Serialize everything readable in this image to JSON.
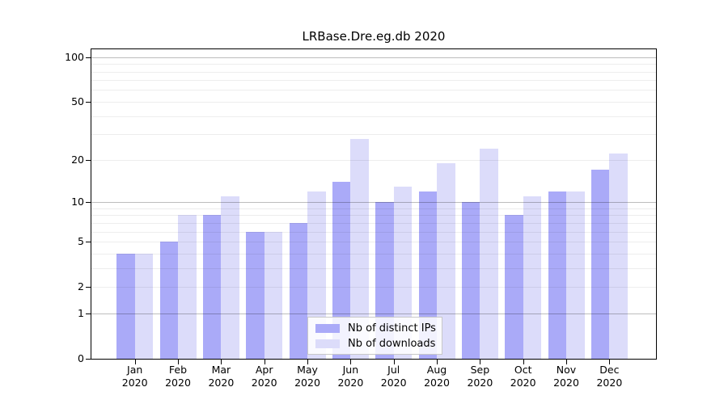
{
  "chart_data": {
    "type": "bar",
    "title": "LRBase.Dre.eg.db 2020",
    "categories": [
      "Jan",
      "Feb",
      "Mar",
      "Apr",
      "May",
      "Jun",
      "Jul",
      "Aug",
      "Sep",
      "Oct",
      "Nov",
      "Dec"
    ],
    "category_year": "2020",
    "series": [
      {
        "name": "Nb of distinct IPs",
        "color": "#aaaaf8",
        "values": [
          4,
          5,
          8,
          6,
          7,
          14,
          10,
          12,
          10,
          8,
          12,
          17
        ]
      },
      {
        "name": "Nb of downloads",
        "color": "#dcdcfa",
        "values": [
          4,
          8,
          11,
          6,
          12,
          28,
          13,
          19,
          24,
          11,
          12,
          22
        ]
      }
    ],
    "xlabel": "",
    "ylabel": "",
    "y_scale": "log1p",
    "y_ticks": [
      0,
      1,
      2,
      5,
      10,
      20,
      50,
      100
    ],
    "y_gridlines_major": [
      1,
      10,
      100
    ],
    "y_gridlines_minor": [
      2,
      3,
      4,
      5,
      6,
      7,
      8,
      9,
      20,
      30,
      40,
      50,
      60,
      70,
      80,
      90
    ],
    "ylim": [
      0,
      113
    ],
    "grid": "on",
    "legend_position": "bottom-center"
  }
}
